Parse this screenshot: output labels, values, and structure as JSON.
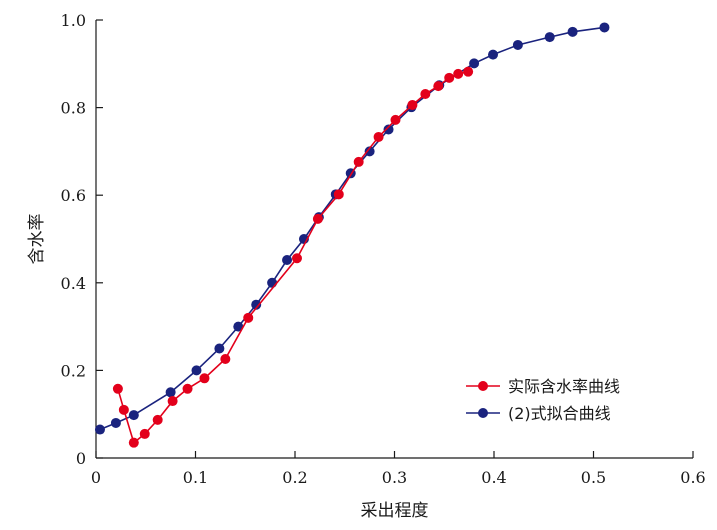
{
  "chart_data": {
    "type": "line",
    "xlabel": "采出程度",
    "ylabel": "含水率",
    "xlim": [
      0,
      0.6
    ],
    "ylim": [
      0,
      1.0
    ],
    "x_ticks": [
      "0",
      "0.1",
      "0.2",
      "0.3",
      "0.4",
      "0.5",
      "0.6"
    ],
    "y_ticks": [
      "0",
      "0.2",
      "0.4",
      "0.6",
      "0.8",
      "1.0"
    ],
    "x_tick_values": [
      0,
      0.1,
      0.2,
      0.3,
      0.4,
      0.5,
      0.6
    ],
    "y_tick_values": [
      0,
      0.2,
      0.4,
      0.6,
      0.8,
      1.0
    ],
    "grid": false,
    "legend_position": "bottom-right",
    "series": [
      {
        "name": "实际含水率曲线",
        "color": "#e3001b",
        "x": [
          0.022,
          0.028,
          0.038,
          0.049,
          0.062,
          0.077,
          0.092,
          0.109,
          0.13,
          0.153,
          0.202,
          0.223,
          0.244,
          0.264,
          0.284,
          0.301,
          0.318,
          0.331,
          0.344,
          0.355,
          0.364,
          0.374
        ],
        "y": [
          0.158,
          0.11,
          0.035,
          0.055,
          0.087,
          0.13,
          0.158,
          0.182,
          0.226,
          0.32,
          0.456,
          0.546,
          0.602,
          0.676,
          0.733,
          0.772,
          0.806,
          0.831,
          0.849,
          0.868,
          0.877,
          0.882
        ]
      },
      {
        "name": "(2)式拟合曲线",
        "color": "#1a237e",
        "x": [
          0.004,
          0.02,
          0.038,
          0.075,
          0.101,
          0.124,
          0.143,
          0.161,
          0.177,
          0.192,
          0.209,
          0.224,
          0.241,
          0.256,
          0.275,
          0.294,
          0.317,
          0.345,
          0.38,
          0.399,
          0.424,
          0.456,
          0.479,
          0.511
        ],
        "y": [
          0.065,
          0.08,
          0.098,
          0.15,
          0.2,
          0.25,
          0.3,
          0.35,
          0.4,
          0.452,
          0.5,
          0.55,
          0.602,
          0.65,
          0.7,
          0.75,
          0.801,
          0.851,
          0.901,
          0.921,
          0.943,
          0.961,
          0.973,
          0.983
        ]
      }
    ]
  }
}
